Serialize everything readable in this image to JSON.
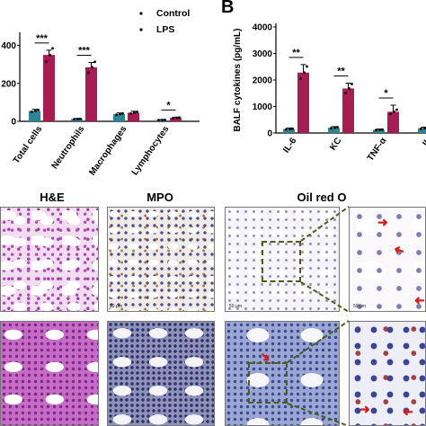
{
  "panels": {
    "panel_b_letter": "B",
    "row_headers": [
      "H&E",
      "MPO",
      "Oil red O"
    ],
    "scale_label": "50 μm"
  },
  "chart_data": [
    {
      "type": "bar",
      "title": "",
      "xlabel": "",
      "ylabel": "",
      "categories": [
        "Total cells",
        "Neutrophils",
        "Macrophages",
        "Lymphocytes"
      ],
      "y_tick_labels": [
        "0",
        "200",
        "400"
      ],
      "ylim": [
        0,
        450
      ],
      "series": [
        {
          "name": "Control",
          "values": [
            55,
            12,
            38,
            7
          ],
          "errors": [
            8,
            3,
            6,
            2
          ],
          "color": "#2b8597"
        },
        {
          "name": "LPS",
          "values": [
            350,
            285,
            45,
            18
          ],
          "errors": [
            25,
            25,
            8,
            4
          ],
          "color": "#a51d53"
        }
      ],
      "significance": [
        "***",
        "***",
        "",
        "*"
      ],
      "legend": "top-right",
      "grid": false
    },
    {
      "type": "bar",
      "title": "",
      "xlabel": "",
      "ylabel": "BALF cytokines (pg/mL)",
      "categories": [
        "IL-6",
        "KC",
        "TNF-α",
        "IL"
      ],
      "y_ticks": [
        0,
        1000,
        2000,
        3000,
        4000
      ],
      "ylim": [
        0,
        4000
      ],
      "series": [
        {
          "name": "Control",
          "values": [
            150,
            200,
            120,
            180
          ],
          "errors": [
            40,
            40,
            30,
            40
          ],
          "color": "#2b8597"
        },
        {
          "name": "LPS",
          "values": [
            2280,
            1680,
            800,
            null
          ],
          "errors": [
            300,
            200,
            250,
            null
          ],
          "color": "#a51d53"
        }
      ],
      "significance": [
        "**",
        "**",
        "*",
        ""
      ],
      "grid": false
    }
  ]
}
